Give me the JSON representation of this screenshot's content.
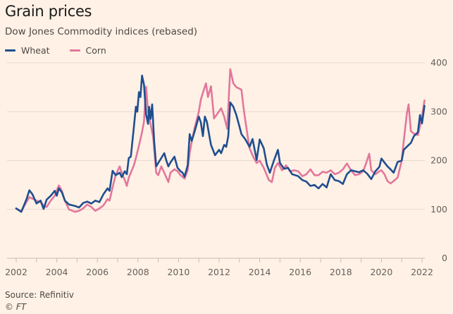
{
  "header": {
    "title": "Grain prices",
    "subtitle": "Dow Jones Commodity indices (rebased)"
  },
  "footer": {
    "source": "Source: Refinitiv",
    "copyright": "© FT"
  },
  "colors": {
    "background": "#fff1e5",
    "wheat": "#1f4e8f",
    "corn": "#e2779c",
    "grid": "#e6d9ce",
    "axis": "#c9bdb3"
  },
  "chart_data": {
    "type": "line",
    "title": "Grain prices",
    "subtitle": "Dow Jones Commodity indices (rebased)",
    "xlabel": "",
    "ylabel": "",
    "xlim": [
      2002,
      2022.1
    ],
    "ylim": [
      0,
      400
    ],
    "x_ticks": [
      2002,
      2004,
      2006,
      2008,
      2010,
      2012,
      2014,
      2016,
      2018,
      2020,
      2022
    ],
    "x_minor_ticks": [
      2003,
      2005,
      2007,
      2009,
      2011,
      2013,
      2015,
      2017,
      2019,
      2021
    ],
    "y_ticks": [
      0,
      100,
      200,
      300,
      400
    ],
    "y_axis_side": "right",
    "grid": true,
    "legend": {
      "placement": "top-left",
      "entries": [
        "Wheat",
        "Corn"
      ]
    },
    "source": "Source: Refinitiv",
    "series": [
      {
        "name": "Wheat",
        "color": "#1f4e8f",
        "points": [
          [
            2002.0,
            102
          ],
          [
            2002.25,
            95
          ],
          [
            2002.5,
            120
          ],
          [
            2002.65,
            139
          ],
          [
            2002.8,
            131
          ],
          [
            2003.0,
            112
          ],
          [
            2003.2,
            118
          ],
          [
            2003.35,
            101
          ],
          [
            2003.5,
            120
          ],
          [
            2003.7,
            128
          ],
          [
            2003.9,
            138
          ],
          [
            2004.0,
            128
          ],
          [
            2004.1,
            143
          ],
          [
            2004.25,
            135
          ],
          [
            2004.4,
            118
          ],
          [
            2004.6,
            110
          ],
          [
            2004.9,
            107
          ],
          [
            2005.1,
            104
          ],
          [
            2005.3,
            113
          ],
          [
            2005.5,
            116
          ],
          [
            2005.7,
            112
          ],
          [
            2005.9,
            118
          ],
          [
            2006.1,
            115
          ],
          [
            2006.3,
            131
          ],
          [
            2006.5,
            143
          ],
          [
            2006.6,
            138
          ],
          [
            2006.75,
            179
          ],
          [
            2006.9,
            170
          ],
          [
            2007.1,
            175
          ],
          [
            2007.2,
            166
          ],
          [
            2007.35,
            178
          ],
          [
            2007.45,
            172
          ],
          [
            2007.55,
            205
          ],
          [
            2007.65,
            208
          ],
          [
            2007.8,
            268
          ],
          [
            2007.9,
            310
          ],
          [
            2007.97,
            300
          ],
          [
            2008.05,
            340
          ],
          [
            2008.12,
            330
          ],
          [
            2008.2,
            374
          ],
          [
            2008.3,
            355
          ],
          [
            2008.4,
            295
          ],
          [
            2008.5,
            275
          ],
          [
            2008.55,
            310
          ],
          [
            2008.62,
            285
          ],
          [
            2008.7,
            315
          ],
          [
            2008.8,
            240
          ],
          [
            2008.9,
            188
          ],
          [
            2009.0,
            195
          ],
          [
            2009.15,
            205
          ],
          [
            2009.3,
            215
          ],
          [
            2009.4,
            200
          ],
          [
            2009.5,
            188
          ],
          [
            2009.6,
            196
          ],
          [
            2009.8,
            208
          ],
          [
            2009.95,
            185
          ],
          [
            2010.1,
            178
          ],
          [
            2010.2,
            175
          ],
          [
            2010.3,
            167
          ],
          [
            2010.45,
            190
          ],
          [
            2010.55,
            254
          ],
          [
            2010.65,
            240
          ],
          [
            2010.8,
            260
          ],
          [
            2011.0,
            290
          ],
          [
            2011.1,
            278
          ],
          [
            2011.2,
            250
          ],
          [
            2011.3,
            290
          ],
          [
            2011.4,
            279
          ],
          [
            2011.5,
            255
          ],
          [
            2011.6,
            232
          ],
          [
            2011.8,
            211
          ],
          [
            2012.0,
            222
          ],
          [
            2012.1,
            215
          ],
          [
            2012.25,
            232
          ],
          [
            2012.35,
            228
          ],
          [
            2012.45,
            250
          ],
          [
            2012.55,
            319
          ],
          [
            2012.7,
            310
          ],
          [
            2012.85,
            293
          ],
          [
            2013.0,
            270
          ],
          [
            2013.1,
            254
          ],
          [
            2013.3,
            243
          ],
          [
            2013.5,
            228
          ],
          [
            2013.65,
            244
          ],
          [
            2013.85,
            201
          ],
          [
            2014.0,
            243
          ],
          [
            2014.2,
            225
          ],
          [
            2014.35,
            192
          ],
          [
            2014.5,
            175
          ],
          [
            2014.7,
            200
          ],
          [
            2014.9,
            222
          ],
          [
            2015.0,
            195
          ],
          [
            2015.2,
            183
          ],
          [
            2015.4,
            185
          ],
          [
            2015.6,
            172
          ],
          [
            2015.9,
            168
          ],
          [
            2016.1,
            160
          ],
          [
            2016.3,
            157
          ],
          [
            2016.5,
            148
          ],
          [
            2016.7,
            150
          ],
          [
            2016.9,
            143
          ],
          [
            2017.1,
            152
          ],
          [
            2017.3,
            145
          ],
          [
            2017.5,
            172
          ],
          [
            2017.7,
            160
          ],
          [
            2017.9,
            158
          ],
          [
            2018.1,
            152
          ],
          [
            2018.3,
            172
          ],
          [
            2018.5,
            180
          ],
          [
            2018.7,
            178
          ],
          [
            2018.9,
            176
          ],
          [
            2019.1,
            180
          ],
          [
            2019.3,
            173
          ],
          [
            2019.5,
            162
          ],
          [
            2019.7,
            178
          ],
          [
            2019.9,
            187
          ],
          [
            2020.0,
            204
          ],
          [
            2020.15,
            196
          ],
          [
            2020.3,
            188
          ],
          [
            2020.45,
            182
          ],
          [
            2020.6,
            175
          ],
          [
            2020.8,
            197
          ],
          [
            2021.0,
            200
          ],
          [
            2021.1,
            222
          ],
          [
            2021.3,
            230
          ],
          [
            2021.45,
            236
          ],
          [
            2021.6,
            250
          ],
          [
            2021.8,
            258
          ],
          [
            2021.9,
            293
          ],
          [
            2022.0,
            276
          ],
          [
            2022.12,
            312
          ]
        ]
      },
      {
        "name": "Corn",
        "color": "#e2779c",
        "points": [
          [
            2002.0,
            102
          ],
          [
            2002.25,
            96
          ],
          [
            2002.5,
            115
          ],
          [
            2002.65,
            125
          ],
          [
            2002.8,
            122
          ],
          [
            2003.0,
            118
          ],
          [
            2003.2,
            115
          ],
          [
            2003.35,
            108
          ],
          [
            2003.5,
            105
          ],
          [
            2003.7,
            118
          ],
          [
            2003.9,
            128
          ],
          [
            2004.1,
            149
          ],
          [
            2004.25,
            138
          ],
          [
            2004.4,
            118
          ],
          [
            2004.6,
            100
          ],
          [
            2004.9,
            95
          ],
          [
            2005.1,
            97
          ],
          [
            2005.3,
            102
          ],
          [
            2005.5,
            110
          ],
          [
            2005.7,
            105
          ],
          [
            2005.9,
            97
          ],
          [
            2006.1,
            102
          ],
          [
            2006.3,
            108
          ],
          [
            2006.5,
            121
          ],
          [
            2006.6,
            118
          ],
          [
            2006.75,
            145
          ],
          [
            2006.9,
            170
          ],
          [
            2007.1,
            188
          ],
          [
            2007.2,
            175
          ],
          [
            2007.35,
            160
          ],
          [
            2007.45,
            148
          ],
          [
            2007.55,
            165
          ],
          [
            2007.65,
            175
          ],
          [
            2007.8,
            190
          ],
          [
            2007.9,
            205
          ],
          [
            2008.05,
            230
          ],
          [
            2008.2,
            258
          ],
          [
            2008.3,
            280
          ],
          [
            2008.4,
            351
          ],
          [
            2008.5,
            300
          ],
          [
            2008.62,
            275
          ],
          [
            2008.75,
            248
          ],
          [
            2008.9,
            175
          ],
          [
            2009.0,
            170
          ],
          [
            2009.15,
            188
          ],
          [
            2009.3,
            175
          ],
          [
            2009.5,
            156
          ],
          [
            2009.6,
            175
          ],
          [
            2009.8,
            182
          ],
          [
            2009.95,
            178
          ],
          [
            2010.1,
            170
          ],
          [
            2010.3,
            163
          ],
          [
            2010.45,
            180
          ],
          [
            2010.55,
            215
          ],
          [
            2010.65,
            238
          ],
          [
            2010.8,
            268
          ],
          [
            2011.0,
            300
          ],
          [
            2011.1,
            325
          ],
          [
            2011.25,
            345
          ],
          [
            2011.35,
            358
          ],
          [
            2011.45,
            330
          ],
          [
            2011.6,
            352
          ],
          [
            2011.75,
            286
          ],
          [
            2011.9,
            295
          ],
          [
            2012.1,
            307
          ],
          [
            2012.25,
            290
          ],
          [
            2012.4,
            265
          ],
          [
            2012.55,
            387
          ],
          [
            2012.7,
            358
          ],
          [
            2012.85,
            350
          ],
          [
            2013.1,
            345
          ],
          [
            2013.2,
            309
          ],
          [
            2013.3,
            280
          ],
          [
            2013.5,
            225
          ],
          [
            2013.7,
            206
          ],
          [
            2013.85,
            195
          ],
          [
            2014.0,
            200
          ],
          [
            2014.2,
            185
          ],
          [
            2014.45,
            160
          ],
          [
            2014.6,
            156
          ],
          [
            2014.75,
            185
          ],
          [
            2014.9,
            195
          ],
          [
            2015.1,
            180
          ],
          [
            2015.3,
            190
          ],
          [
            2015.5,
            178
          ],
          [
            2015.7,
            180
          ],
          [
            2015.9,
            178
          ],
          [
            2016.1,
            168
          ],
          [
            2016.3,
            172
          ],
          [
            2016.5,
            182
          ],
          [
            2016.7,
            170
          ],
          [
            2016.9,
            170
          ],
          [
            2017.1,
            177
          ],
          [
            2017.3,
            175
          ],
          [
            2017.5,
            180
          ],
          [
            2017.7,
            172
          ],
          [
            2017.9,
            175
          ],
          [
            2018.1,
            182
          ],
          [
            2018.3,
            194
          ],
          [
            2018.5,
            180
          ],
          [
            2018.7,
            170
          ],
          [
            2018.9,
            172
          ],
          [
            2019.1,
            178
          ],
          [
            2019.25,
            195
          ],
          [
            2019.4,
            214
          ],
          [
            2019.5,
            180
          ],
          [
            2019.7,
            172
          ],
          [
            2019.9,
            178
          ],
          [
            2020.0,
            180
          ],
          [
            2020.15,
            172
          ],
          [
            2020.3,
            158
          ],
          [
            2020.45,
            153
          ],
          [
            2020.6,
            158
          ],
          [
            2020.8,
            165
          ],
          [
            2021.0,
            200
          ],
          [
            2021.1,
            240
          ],
          [
            2021.25,
            295
          ],
          [
            2021.34,
            315
          ],
          [
            2021.45,
            260
          ],
          [
            2021.6,
            255
          ],
          [
            2021.8,
            252
          ],
          [
            2021.9,
            270
          ],
          [
            2022.0,
            290
          ],
          [
            2022.12,
            323
          ]
        ]
      }
    ]
  }
}
